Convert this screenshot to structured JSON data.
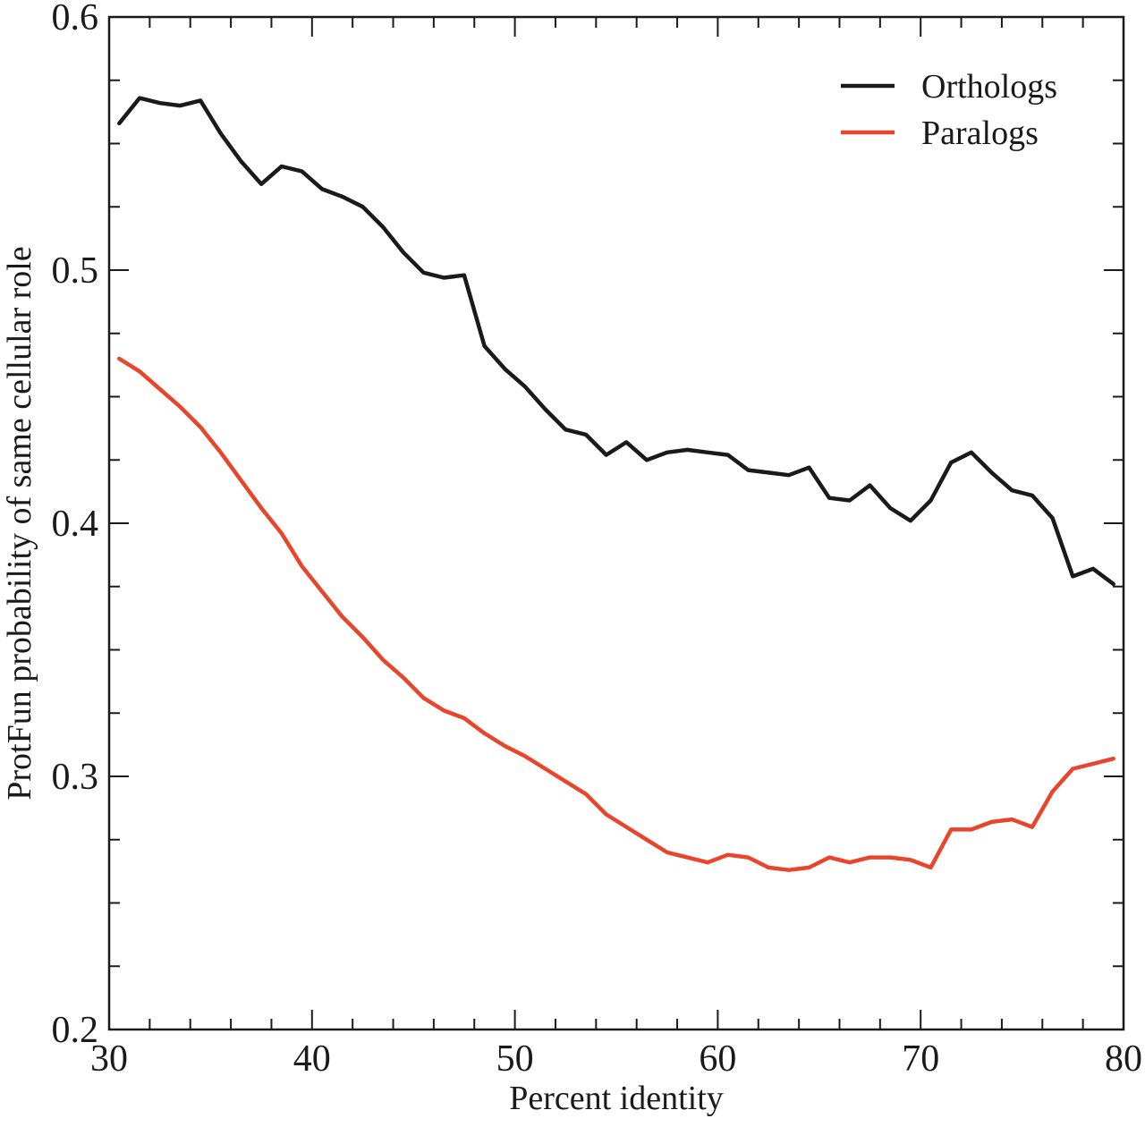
{
  "chart_data": {
    "type": "line",
    "xlabel": "Percent identity",
    "ylabel": "ProtFun probability of same cellular role",
    "xlim": [
      30,
      80
    ],
    "ylim": [
      0.2,
      0.6
    ],
    "x_major_ticks": [
      30,
      40,
      50,
      60,
      70,
      80
    ],
    "x_tick_labels": [
      "30",
      "40",
      "50",
      "60",
      "70",
      "80"
    ],
    "y_major_ticks": [
      0.2,
      0.3,
      0.4,
      0.5,
      0.6
    ],
    "y_tick_labels": [
      "0.2",
      "0.3",
      "0.4",
      "0.5",
      "0.6"
    ],
    "grid": false,
    "legend_position": "top-right",
    "series": [
      {
        "name": "Orthologs",
        "color": "#1a1a1a",
        "points": [
          [
            30.5,
            0.558
          ],
          [
            31.5,
            0.568
          ],
          [
            32.5,
            0.566
          ],
          [
            33.5,
            0.565
          ],
          [
            34.5,
            0.567
          ],
          [
            35.5,
            0.554
          ],
          [
            36.5,
            0.543
          ],
          [
            37.5,
            0.534
          ],
          [
            38.5,
            0.541
          ],
          [
            39.5,
            0.539
          ],
          [
            40.5,
            0.532
          ],
          [
            41.5,
            0.529
          ],
          [
            42.5,
            0.525
          ],
          [
            43.5,
            0.517
          ],
          [
            44.5,
            0.507
          ],
          [
            45.5,
            0.499
          ],
          [
            46.5,
            0.497
          ],
          [
            47.5,
            0.498
          ],
          [
            48.5,
            0.47
          ],
          [
            49.5,
            0.461
          ],
          [
            50.5,
            0.454
          ],
          [
            51.5,
            0.445
          ],
          [
            52.5,
            0.437
          ],
          [
            53.5,
            0.435
          ],
          [
            54.5,
            0.427
          ],
          [
            55.5,
            0.432
          ],
          [
            56.5,
            0.425
          ],
          [
            57.5,
            0.428
          ],
          [
            58.5,
            0.429
          ],
          [
            59.5,
            0.428
          ],
          [
            60.5,
            0.427
          ],
          [
            61.5,
            0.421
          ],
          [
            62.5,
            0.42
          ],
          [
            63.5,
            0.419
          ],
          [
            64.5,
            0.422
          ],
          [
            65.5,
            0.41
          ],
          [
            66.5,
            0.409
          ],
          [
            67.5,
            0.415
          ],
          [
            68.5,
            0.406
          ],
          [
            69.5,
            0.401
          ],
          [
            70.5,
            0.409
          ],
          [
            71.5,
            0.424
          ],
          [
            72.5,
            0.428
          ],
          [
            73.5,
            0.42
          ],
          [
            74.5,
            0.413
          ],
          [
            75.5,
            0.411
          ],
          [
            76.5,
            0.402
          ],
          [
            77.5,
            0.379
          ],
          [
            78.5,
            0.382
          ],
          [
            79.5,
            0.376
          ]
        ]
      },
      {
        "name": "Paralogs",
        "color": "#e8452c",
        "points": [
          [
            30.5,
            0.465
          ],
          [
            31.5,
            0.46
          ],
          [
            32.5,
            0.453
          ],
          [
            33.5,
            0.446
          ],
          [
            34.5,
            0.438
          ],
          [
            35.5,
            0.428
          ],
          [
            36.5,
            0.417
          ],
          [
            37.5,
            0.406
          ],
          [
            38.5,
            0.396
          ],
          [
            39.5,
            0.383
          ],
          [
            40.5,
            0.373
          ],
          [
            41.5,
            0.363
          ],
          [
            42.5,
            0.355
          ],
          [
            43.5,
            0.346
          ],
          [
            44.5,
            0.339
          ],
          [
            45.5,
            0.331
          ],
          [
            46.5,
            0.326
          ],
          [
            47.5,
            0.323
          ],
          [
            48.5,
            0.317
          ],
          [
            49.5,
            0.312
          ],
          [
            50.5,
            0.308
          ],
          [
            51.5,
            0.303
          ],
          [
            52.5,
            0.298
          ],
          [
            53.5,
            0.293
          ],
          [
            54.5,
            0.285
          ],
          [
            55.5,
            0.28
          ],
          [
            56.5,
            0.275
          ],
          [
            57.5,
            0.27
          ],
          [
            58.5,
            0.268
          ],
          [
            59.5,
            0.266
          ],
          [
            60.5,
            0.269
          ],
          [
            61.5,
            0.268
          ],
          [
            62.5,
            0.264
          ],
          [
            63.5,
            0.263
          ],
          [
            64.5,
            0.264
          ],
          [
            65.5,
            0.268
          ],
          [
            66.5,
            0.266
          ],
          [
            67.5,
            0.268
          ],
          [
            68.5,
            0.268
          ],
          [
            69.5,
            0.267
          ],
          [
            70.5,
            0.264
          ],
          [
            71.5,
            0.279
          ],
          [
            72.5,
            0.279
          ],
          [
            73.5,
            0.282
          ],
          [
            74.5,
            0.283
          ],
          [
            75.5,
            0.28
          ],
          [
            76.5,
            0.294
          ],
          [
            77.5,
            0.303
          ],
          [
            78.5,
            0.305
          ],
          [
            79.5,
            0.307
          ]
        ]
      }
    ]
  }
}
